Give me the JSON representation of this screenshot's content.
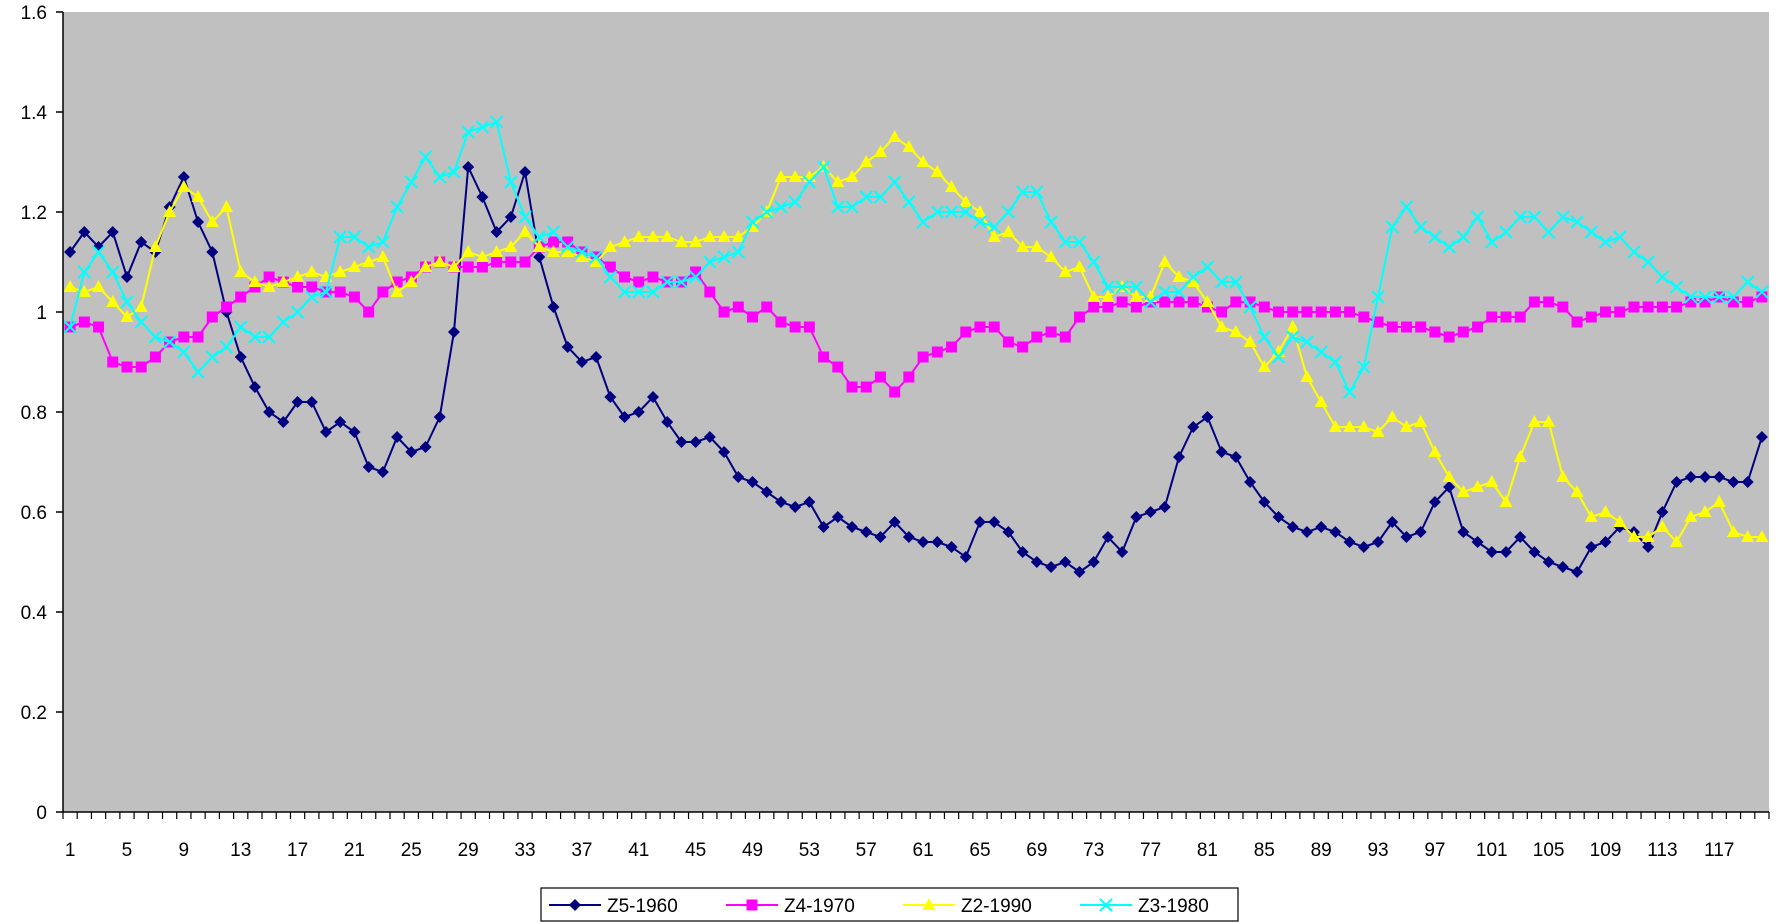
{
  "chart_data": {
    "type": "line",
    "title": "",
    "xlabel": "",
    "ylabel": "",
    "ylim": [
      0,
      1.6
    ],
    "yticks": [
      0,
      0.2,
      0.4,
      0.6,
      0.8,
      1,
      1.2,
      1.4,
      1.6
    ],
    "ytick_labels": [
      "0",
      "0.2",
      "0.4",
      "0.6",
      "0.8",
      "1",
      "1.2",
      "1.4",
      "1.6"
    ],
    "x_count": 120,
    "xticks": [
      1,
      5,
      9,
      13,
      17,
      21,
      25,
      29,
      33,
      37,
      41,
      45,
      49,
      53,
      57,
      61,
      65,
      69,
      73,
      77,
      81,
      85,
      89,
      93,
      97,
      101,
      105,
      109,
      113,
      117
    ],
    "xtick_labels": [
      "1",
      "5",
      "9",
      "13",
      "17",
      "21",
      "25",
      "29",
      "33",
      "37",
      "41",
      "45",
      "49",
      "53",
      "57",
      "61",
      "65",
      "69",
      "73",
      "77",
      "81",
      "85",
      "89",
      "93",
      "97",
      "101",
      "105",
      "109",
      "113",
      "117"
    ],
    "plot_background": "#C0C0C0",
    "grid": false,
    "legend_position": "bottom",
    "series": [
      {
        "name": "Z5-1960",
        "color": "#000080",
        "marker": "diamond",
        "values": [
          1.12,
          1.16,
          1.13,
          1.16,
          1.07,
          1.14,
          1.12,
          1.21,
          1.27,
          1.18,
          1.12,
          1.0,
          0.91,
          0.85,
          0.8,
          0.78,
          0.82,
          0.82,
          0.76,
          0.78,
          0.76,
          0.69,
          0.68,
          0.75,
          0.72,
          0.73,
          0.79,
          0.96,
          1.29,
          1.23,
          1.16,
          1.19,
          1.28,
          1.11,
          1.01,
          0.93,
          0.9,
          0.91,
          0.83,
          0.79,
          0.8,
          0.83,
          0.78,
          0.74,
          0.74,
          0.75,
          0.72,
          0.67,
          0.66,
          0.64,
          0.62,
          0.61,
          0.62,
          0.57,
          0.59,
          0.57,
          0.56,
          0.55,
          0.58,
          0.55,
          0.54,
          0.54,
          0.53,
          0.51,
          0.58,
          0.58,
          0.56,
          0.52,
          0.5,
          0.49,
          0.5,
          0.48,
          0.5,
          0.55,
          0.52,
          0.59,
          0.6,
          0.61,
          0.71,
          0.77,
          0.79,
          0.72,
          0.71,
          0.66,
          0.62,
          0.59,
          0.57,
          0.56,
          0.57,
          0.56,
          0.54,
          0.53,
          0.54,
          0.58,
          0.55,
          0.56,
          0.62,
          0.65,
          0.56,
          0.54,
          0.52,
          0.52,
          0.55,
          0.52,
          0.5,
          0.49,
          0.48,
          0.53,
          0.54,
          0.57,
          0.56,
          0.53,
          0.6,
          0.66,
          0.67,
          0.67,
          0.67,
          0.66,
          0.66,
          0.75
        ]
      },
      {
        "name": "Z4-1970",
        "color": "#FF00FF",
        "marker": "square",
        "values": [
          0.97,
          0.98,
          0.97,
          0.9,
          0.89,
          0.89,
          0.91,
          0.94,
          0.95,
          0.95,
          0.99,
          1.01,
          1.03,
          1.05,
          1.07,
          1.06,
          1.05,
          1.05,
          1.04,
          1.04,
          1.03,
          1.0,
          1.04,
          1.06,
          1.07,
          1.09,
          1.1,
          1.09,
          1.09,
          1.09,
          1.1,
          1.1,
          1.1,
          1.13,
          1.14,
          1.14,
          1.12,
          1.11,
          1.09,
          1.07,
          1.06,
          1.07,
          1.06,
          1.06,
          1.08,
          1.04,
          1.0,
          1.01,
          0.99,
          1.01,
          0.98,
          0.97,
          0.97,
          0.91,
          0.89,
          0.85,
          0.85,
          0.87,
          0.84,
          0.87,
          0.91,
          0.92,
          0.93,
          0.96,
          0.97,
          0.97,
          0.94,
          0.93,
          0.95,
          0.96,
          0.95,
          0.99,
          1.01,
          1.01,
          1.02,
          1.01,
          1.02,
          1.02,
          1.02,
          1.02,
          1.01,
          1.0,
          1.02,
          1.02,
          1.01,
          1.0,
          1.0,
          1.0,
          1.0,
          1.0,
          1.0,
          0.99,
          0.98,
          0.97,
          0.97,
          0.97,
          0.96,
          0.95,
          0.96,
          0.97,
          0.99,
          0.99,
          0.99,
          1.02,
          1.02,
          1.01,
          0.98,
          0.99,
          1.0,
          1.0,
          1.01,
          1.01,
          1.01,
          1.01,
          1.02,
          1.02,
          1.03,
          1.02,
          1.02,
          1.03
        ]
      },
      {
        "name": "Z2-1990",
        "color": "#FFFF00",
        "marker": "triangle",
        "values": [
          1.05,
          1.04,
          1.05,
          1.02,
          0.99,
          1.01,
          1.13,
          1.2,
          1.25,
          1.23,
          1.18,
          1.21,
          1.08,
          1.06,
          1.05,
          1.06,
          1.07,
          1.08,
          1.07,
          1.08,
          1.09,
          1.1,
          1.11,
          1.04,
          1.06,
          1.09,
          1.1,
          1.09,
          1.12,
          1.11,
          1.12,
          1.13,
          1.16,
          1.13,
          1.12,
          1.12,
          1.11,
          1.1,
          1.13,
          1.14,
          1.15,
          1.15,
          1.15,
          1.14,
          1.14,
          1.15,
          1.15,
          1.15,
          1.17,
          1.2,
          1.27,
          1.27,
          1.27,
          1.29,
          1.26,
          1.27,
          1.3,
          1.32,
          1.35,
          1.33,
          1.3,
          1.28,
          1.25,
          1.22,
          1.2,
          1.15,
          1.16,
          1.13,
          1.13,
          1.11,
          1.08,
          1.09,
          1.03,
          1.03,
          1.05,
          1.03,
          1.03,
          1.1,
          1.07,
          1.06,
          1.02,
          0.97,
          0.96,
          0.94,
          0.89,
          0.92,
          0.97,
          0.87,
          0.82,
          0.77,
          0.77,
          0.77,
          0.76,
          0.79,
          0.77,
          0.78,
          0.72,
          0.67,
          0.64,
          0.65,
          0.66,
          0.62,
          0.71,
          0.78,
          0.78,
          0.67,
          0.64,
          0.59,
          0.6,
          0.58,
          0.55,
          0.55,
          0.57,
          0.54,
          0.59,
          0.6,
          0.62,
          0.56,
          0.55,
          0.55
        ]
      },
      {
        "name": "Z3-1980",
        "color": "#00FFFF",
        "marker": "x",
        "values": [
          0.97,
          1.08,
          1.12,
          1.08,
          1.02,
          0.98,
          0.95,
          0.94,
          0.92,
          0.88,
          0.91,
          0.93,
          0.97,
          0.95,
          0.95,
          0.98,
          1.0,
          1.03,
          1.04,
          1.15,
          1.15,
          1.13,
          1.14,
          1.21,
          1.26,
          1.31,
          1.27,
          1.28,
          1.36,
          1.37,
          1.38,
          1.26,
          1.19,
          1.15,
          1.16,
          1.13,
          1.12,
          1.11,
          1.07,
          1.04,
          1.04,
          1.04,
          1.06,
          1.06,
          1.07,
          1.1,
          1.11,
          1.12,
          1.18,
          1.2,
          1.21,
          1.22,
          1.26,
          1.29,
          1.21,
          1.21,
          1.23,
          1.23,
          1.26,
          1.22,
          1.18,
          1.2,
          1.2,
          1.2,
          1.18,
          1.17,
          1.2,
          1.24,
          1.24,
          1.18,
          1.14,
          1.14,
          1.1,
          1.05,
          1.05,
          1.05,
          1.02,
          1.04,
          1.04,
          1.07,
          1.09,
          1.06,
          1.06,
          1.01,
          0.95,
          0.91,
          0.95,
          0.94,
          0.92,
          0.9,
          0.84,
          0.89,
          1.03,
          1.17,
          1.21,
          1.17,
          1.15,
          1.13,
          1.15,
          1.19,
          1.14,
          1.16,
          1.19,
          1.19,
          1.16,
          1.19,
          1.18,
          1.16,
          1.14,
          1.15,
          1.12,
          1.1,
          1.07,
          1.05,
          1.03,
          1.03,
          1.03,
          1.03,
          1.06,
          1.04
        ]
      }
    ]
  }
}
